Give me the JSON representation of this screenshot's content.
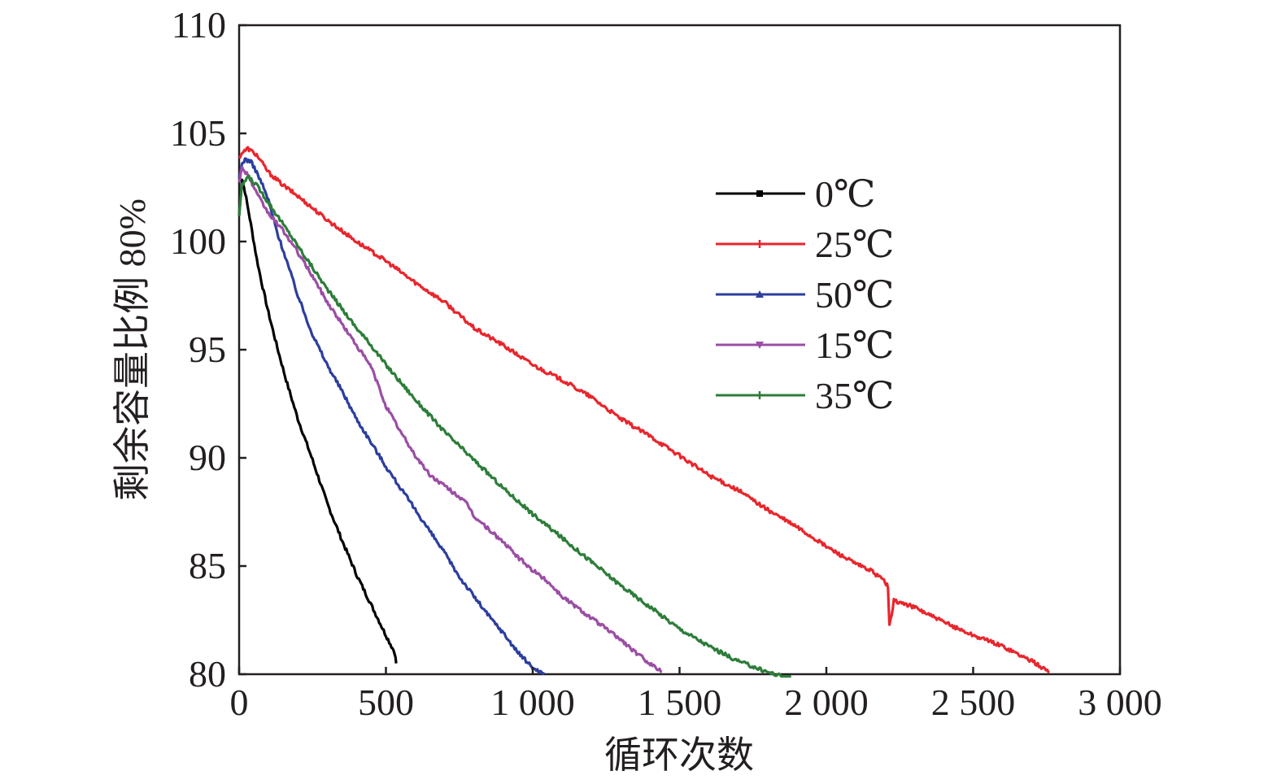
{
  "chart_data": {
    "type": "line",
    "title": "",
    "xlabel": "循环次数",
    "ylabel": "剩余容量比例 80%",
    "xlim": [
      0,
      3000
    ],
    "ylim": [
      80,
      110
    ],
    "xticks": [
      0,
      500,
      1000,
      1500,
      2000,
      2500,
      3000
    ],
    "xtick_labels": [
      "0",
      "500",
      "1 000",
      "1 500",
      "2 000",
      "2 500",
      "3 000"
    ],
    "yticks": [
      80,
      85,
      90,
      95,
      100,
      105,
      110
    ],
    "ytick_labels": [
      "80",
      "85",
      "90",
      "95",
      "100",
      "105",
      "110"
    ],
    "grid": false,
    "legend_position": "upper-center-right",
    "series": [
      {
        "name": "0℃",
        "color": "#000000",
        "marker": "square",
        "x": [
          0,
          10,
          20,
          40,
          60,
          80,
          100,
          130,
          160,
          200,
          250,
          300,
          350,
          400,
          450,
          500,
          530,
          535
        ],
        "y": [
          101.2,
          102.9,
          102.3,
          100.8,
          99.2,
          97.9,
          96.7,
          95.1,
          93.6,
          91.8,
          89.9,
          87.9,
          86.2,
          84.6,
          83.2,
          81.8,
          81.0,
          80.5
        ]
      },
      {
        "name": "25℃",
        "color": "#e8262d",
        "marker": "plus",
        "x": [
          0,
          10,
          30,
          60,
          100,
          150,
          200,
          300,
          400,
          500,
          600,
          700,
          800,
          900,
          1000,
          1100,
          1200,
          1300,
          1400,
          1500,
          1600,
          1700,
          1800,
          1900,
          2000,
          2050,
          2100,
          2150,
          2200,
          2210,
          2215,
          2230,
          2300,
          2400,
          2500,
          2600,
          2700,
          2760
        ],
        "y": [
          103.9,
          104.1,
          104.3,
          104.0,
          103.2,
          102.6,
          102.1,
          101.0,
          100.0,
          99.1,
          98.1,
          97.2,
          96.0,
          95.2,
          94.3,
          93.6,
          92.8,
          91.8,
          91.0,
          90.1,
          89.2,
          88.5,
          87.6,
          86.8,
          85.9,
          85.5,
          85.1,
          84.8,
          84.3,
          84.0,
          82.2,
          83.4,
          83.1,
          82.4,
          81.8,
          81.3,
          80.6,
          80.1
        ]
      },
      {
        "name": "50℃",
        "color": "#2c3e9e",
        "marker": "triangle",
        "x": [
          0,
          10,
          20,
          40,
          60,
          80,
          100,
          130,
          160,
          200,
          250,
          300,
          350,
          400,
          450,
          500,
          550,
          600,
          650,
          700,
          750,
          800,
          850,
          900,
          950,
          1000,
          1040
        ],
        "y": [
          102.9,
          103.6,
          103.8,
          103.7,
          103.2,
          102.6,
          101.9,
          100.4,
          99.2,
          97.5,
          95.7,
          94.3,
          93.1,
          91.8,
          90.7,
          89.6,
          88.6,
          87.6,
          86.6,
          85.6,
          84.5,
          83.6,
          82.7,
          81.9,
          81.0,
          80.3,
          80.0
        ]
      },
      {
        "name": "15℃",
        "color": "#9b4ea4",
        "marker": "triangle-down",
        "x": [
          0,
          10,
          30,
          60,
          100,
          150,
          200,
          250,
          300,
          350,
          400,
          450,
          500,
          550,
          600,
          650,
          700,
          750,
          780,
          800,
          850,
          900,
          950,
          1000,
          1050,
          1100,
          1150,
          1200,
          1250,
          1300,
          1350,
          1400,
          1440
        ],
        "y": [
          102.8,
          103.4,
          103.1,
          102.2,
          101.3,
          100.5,
          99.5,
          98.4,
          97.2,
          96.2,
          95.2,
          94.2,
          92.4,
          91.2,
          90.1,
          89.2,
          88.7,
          88.2,
          87.8,
          87.3,
          86.7,
          86.1,
          85.4,
          84.8,
          84.3,
          83.6,
          83.1,
          82.6,
          82.1,
          81.6,
          81.0,
          80.5,
          80.1
        ]
      },
      {
        "name": "35℃",
        "color": "#2d7d3a",
        "marker": "plus",
        "x": [
          0,
          10,
          30,
          60,
          100,
          150,
          200,
          250,
          300,
          350,
          400,
          450,
          500,
          550,
          600,
          700,
          800,
          900,
          1000,
          1100,
          1200,
          1300,
          1400,
          1500,
          1600,
          1700,
          1800,
          1850,
          1880
        ],
        "y": [
          101.2,
          102.6,
          103.0,
          102.6,
          101.8,
          100.8,
          99.8,
          98.8,
          97.8,
          96.9,
          96.0,
          95.2,
          94.3,
          93.5,
          92.7,
          91.2,
          89.9,
          88.6,
          87.4,
          86.3,
          85.2,
          84.1,
          83.1,
          82.1,
          81.3,
          80.6,
          80.1,
          79.9,
          79.8
        ]
      }
    ]
  }
}
